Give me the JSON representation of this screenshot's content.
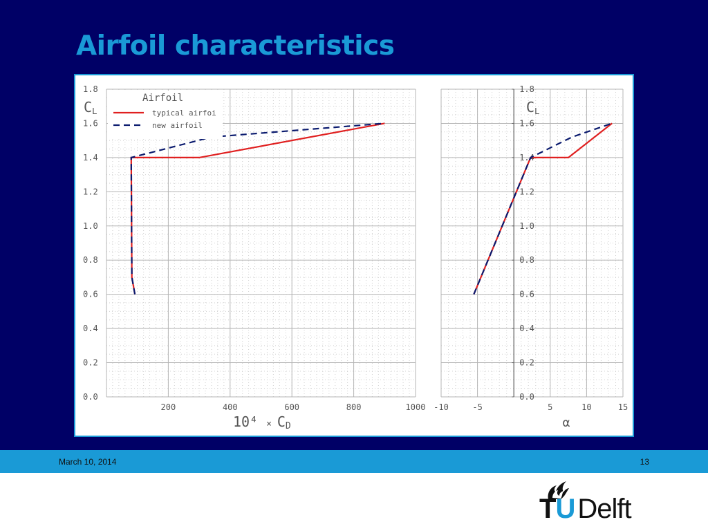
{
  "slide": {
    "title": "Airfoil characteristics",
    "footer_date": "March 10, 2014",
    "page_number": "13",
    "logo": {
      "tu": "T",
      "u": "U",
      "delft": "Delft"
    }
  },
  "colors": {
    "background": "#000066",
    "accent": "#1a9ad6",
    "typical_airfoil": "#e02020",
    "new_airfoil": "#0a1a6e"
  },
  "chart_data": [
    {
      "type": "line",
      "xlabel": "10⁴ × C_D",
      "ylabel": "C_L",
      "xlim": [
        0,
        1000
      ],
      "ylim": [
        0,
        1.8
      ],
      "xticks": [
        "200",
        "400",
        "600",
        "800",
        "1000"
      ],
      "yticks": [
        "0.0",
        "0.2",
        "0.4",
        "0.6",
        "0.8",
        "1.0",
        "1.2",
        "1.4",
        "1.6",
        "1.8"
      ],
      "grid": true,
      "legend": {
        "title": "Airfoil",
        "position": "top-left"
      },
      "series": [
        {
          "name": "typical airfoi",
          "color": "#e02020",
          "dash": false,
          "x": [
            92,
            82,
            80,
            300,
            900
          ],
          "y": [
            0.6,
            0.7,
            1.4,
            1.4,
            1.6
          ]
        },
        {
          "name": "new airfoil",
          "color": "#0a1a6e",
          "dash": true,
          "x": [
            92,
            82,
            80,
            340,
            900
          ],
          "y": [
            0.6,
            0.7,
            1.4,
            1.52,
            1.6
          ]
        }
      ]
    },
    {
      "type": "line",
      "xlabel": "α",
      "ylabel": "C_L",
      "xlim": [
        -10,
        15
      ],
      "ylim": [
        0,
        1.8
      ],
      "xticks": [
        "-10",
        "-5",
        "5",
        "10",
        "15"
      ],
      "yticks": [
        "0.0",
        "0.2",
        "0.4",
        "0.6",
        "0.8",
        "1.0",
        "1.2",
        "1.4",
        "1.6",
        "1.8"
      ],
      "grid": true,
      "series": [
        {
          "name": "typical airfoil",
          "color": "#e02020",
          "dash": false,
          "x": [
            -5.5,
            2.3,
            7.5,
            13.5
          ],
          "y": [
            0.6,
            1.4,
            1.4,
            1.6
          ]
        },
        {
          "name": "new airfoil",
          "color": "#0a1a6e",
          "dash": true,
          "x": [
            -5.5,
            2.3,
            8.0,
            13.5
          ],
          "y": [
            0.6,
            1.4,
            1.52,
            1.6
          ]
        }
      ]
    }
  ]
}
